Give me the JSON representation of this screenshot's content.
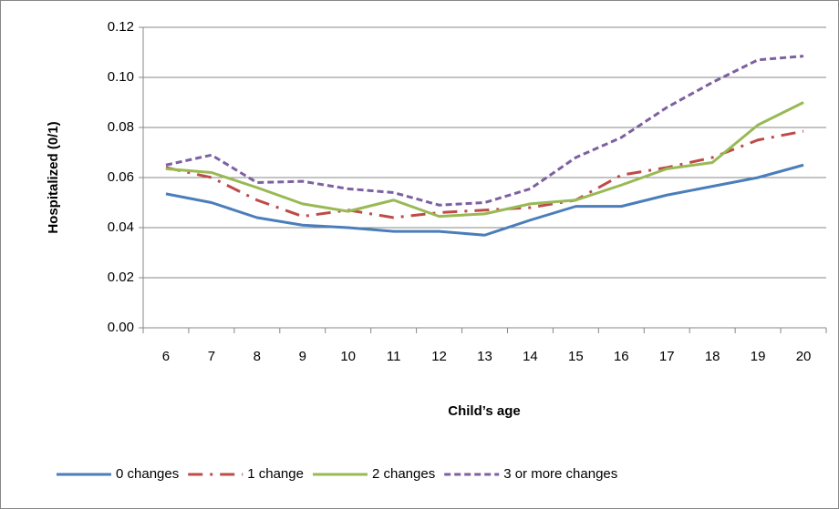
{
  "chart_data": {
    "type": "line",
    "x_label": "Child’s age",
    "y_label": "Hospitalized (0/1)",
    "categories": [
      "6",
      "7",
      "8",
      "9",
      "10",
      "11",
      "12",
      "13",
      "14",
      "15",
      "16",
      "17",
      "18",
      "19",
      "20"
    ],
    "ylim": [
      0,
      0.12
    ],
    "yticks": [
      {
        "value": 0,
        "label": "0.00"
      },
      0.02,
      0.04,
      0.06,
      0.08,
      {
        "value": 0.1,
        "label": "0.10"
      },
      0.12
    ],
    "grid": true,
    "legend": "bottom",
    "series": [
      {
        "name": "0 changes",
        "color": "#4a7ebb",
        "values": [
          0.0535,
          0.05,
          0.044,
          0.041,
          0.04,
          0.0385,
          0.0385,
          0.037,
          0.043,
          0.0485,
          0.0485,
          0.053,
          0.0565,
          0.06,
          0.065
        ]
      },
      {
        "name": "1 change",
        "color": "#be4b48",
        "values": [
          0.064,
          0.06,
          0.051,
          0.0445,
          0.047,
          0.044,
          0.046,
          0.047,
          0.048,
          0.051,
          0.061,
          0.064,
          0.068,
          0.075,
          0.0785
        ]
      },
      {
        "name": "2 changes",
        "color": "#98b954",
        "values": [
          0.0635,
          0.062,
          0.056,
          0.0495,
          0.0465,
          0.051,
          0.0445,
          0.0455,
          0.0495,
          0.051,
          0.057,
          0.0635,
          0.066,
          0.081,
          0.09
        ]
      },
      {
        "name": "3 or more changes",
        "color": "#7d60a0",
        "values": [
          0.065,
          0.069,
          0.058,
          0.0585,
          0.0555,
          0.054,
          0.049,
          0.05,
          0.0555,
          0.068,
          0.076,
          0.088,
          0.098,
          0.107,
          0.1085
        ]
      }
    ]
  }
}
